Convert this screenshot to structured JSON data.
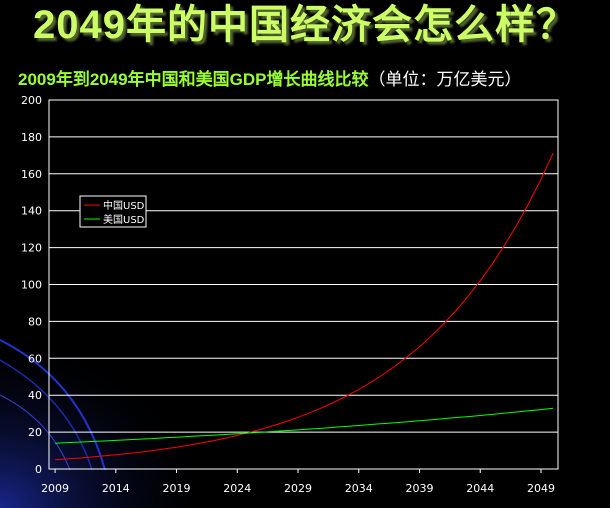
{
  "title": "2049年的中国经济会怎么样？",
  "subtitle_main": "2009年到2049年中国和美国GDP增长曲线比较",
  "subtitle_unit": "（单位：万亿美元）",
  "chart_data": {
    "type": "line",
    "title": "2009年到2049年中国和美国GDP增长曲线比较（单位：万亿美元）",
    "xlabel": "",
    "ylabel": "",
    "xlim": [
      2008.5,
      2050.4
    ],
    "ylim": [
      0,
      200
    ],
    "xticks": [
      2009,
      2014,
      2019,
      2024,
      2029,
      2034,
      2039,
      2044,
      2049
    ],
    "yticks": [
      0,
      20,
      40,
      60,
      80,
      100,
      120,
      140,
      160,
      180,
      200
    ],
    "grid": "horizontal",
    "legend_placement": "upper-left",
    "x": [
      2009,
      2010,
      2011,
      2012,
      2013,
      2014,
      2015,
      2016,
      2017,
      2018,
      2019,
      2020,
      2021,
      2022,
      2023,
      2024,
      2025,
      2026,
      2027,
      2028,
      2029,
      2030,
      2031,
      2032,
      2033,
      2034,
      2035,
      2036,
      2037,
      2038,
      2039,
      2040,
      2041,
      2042,
      2043,
      2044,
      2045,
      2046,
      2047,
      2048,
      2049,
      2050
    ],
    "series": [
      {
        "name": "中国USD",
        "color": "#ff0000",
        "values": [
          5.0,
          5.5,
          5.9,
          6.5,
          7.1,
          7.7,
          8.4,
          9.1,
          10.0,
          10.9,
          11.8,
          12.9,
          14.1,
          15.3,
          16.7,
          18.2,
          19.9,
          21.6,
          23.6,
          25.7,
          28.0,
          30.5,
          33.3,
          36.3,
          39.6,
          43.1,
          47.0,
          51.2,
          55.8,
          60.9,
          66.3,
          72.3,
          78.8,
          85.9,
          93.6,
          102.1,
          111.2,
          121.3,
          132.2,
          144.1,
          157.0,
          171.2
        ]
      },
      {
        "name": "美国USD",
        "color": "#00ff00",
        "values": [
          14.0,
          14.3,
          14.6,
          14.9,
          15.2,
          15.5,
          15.9,
          16.2,
          16.5,
          16.9,
          17.2,
          17.6,
          18.0,
          18.3,
          18.7,
          19.1,
          19.5,
          19.9,
          20.4,
          20.8,
          21.2,
          21.7,
          22.1,
          22.6,
          23.1,
          23.6,
          24.1,
          24.6,
          25.1,
          25.6,
          26.2,
          26.7,
          27.3,
          27.9,
          28.4,
          29.0,
          29.6,
          30.3,
          30.9,
          31.6,
          32.2,
          32.9
        ]
      }
    ]
  }
}
